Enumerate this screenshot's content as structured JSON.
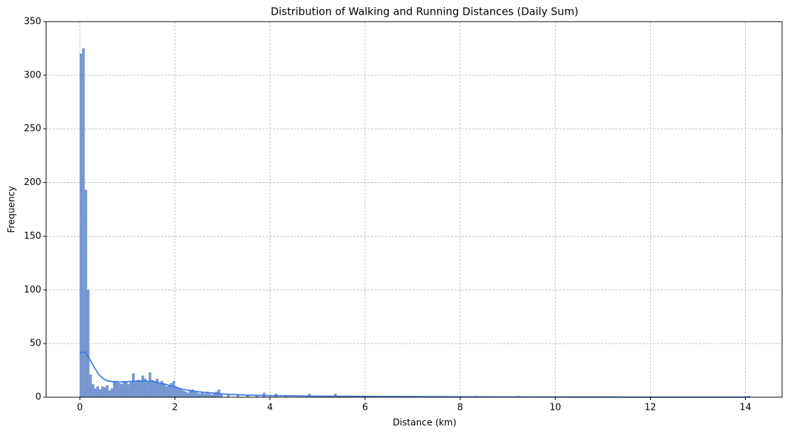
{
  "chart_data": {
    "type": "histogram",
    "title": "Distribution of Walking and Running Distances (Daily Sum)",
    "xlabel": "Distance (km)",
    "ylabel": "Frequency",
    "color": "#7b9bd4",
    "edgecolor": "#5b7fc0",
    "bins": [
      0,
      0.05,
      0.1,
      0.15,
      0.2,
      0.25,
      0.3,
      0.35,
      0.4,
      0.45,
      0.5,
      0.55,
      0.6,
      0.65,
      0.7,
      0.75,
      0.8,
      0.85,
      0.9,
      0.95,
      1,
      1.05,
      1.1,
      1.15,
      1.2,
      1.25,
      1.3,
      1.35,
      1.4,
      1.45,
      1.5,
      1.55,
      1.6,
      1.65,
      1.7,
      1.75,
      1.8,
      1.85,
      1.9,
      1.95,
      2,
      2.05,
      2.1,
      2.15,
      2.2,
      2.25,
      2.3,
      2.35,
      2.4,
      2.45,
      2.5,
      2.55,
      2.6,
      2.65,
      2.7,
      2.75,
      2.8,
      2.85,
      2.9,
      2.95,
      3,
      3.1,
      3.15,
      3.3,
      3.35,
      3.5,
      3.55,
      3.7,
      3.75,
      3.85,
      3.9,
      4.1,
      4.15,
      4.3,
      4.35,
      4.8,
      4.85,
      5.35,
      5.4,
      6,
      6.05,
      6.9,
      6.95,
      8.3,
      8.35,
      9.2,
      9.25,
      14.05,
      14.1
    ],
    "values": [
      320,
      325,
      193,
      100,
      21,
      12,
      8,
      10,
      7,
      10,
      9,
      11,
      6,
      8,
      15,
      15,
      13,
      12,
      15,
      14,
      12,
      14,
      22,
      14,
      16,
      15,
      20,
      17,
      14,
      23,
      16,
      15,
      17,
      13,
      15,
      12,
      10,
      11,
      13,
      15,
      10,
      8,
      7,
      6,
      5,
      4,
      6,
      7,
      5,
      4,
      3,
      4,
      3,
      5,
      3,
      2,
      3,
      5,
      7,
      3,
      0,
      2,
      0,
      2,
      0,
      2,
      0,
      2,
      0,
      4,
      0,
      3,
      0,
      1,
      0,
      3,
      0,
      3,
      0,
      1,
      0,
      1,
      0,
      1,
      0,
      1,
      0,
      1
    ],
    "kde": {
      "color": "#3b78e7",
      "x": [
        0,
        0.05,
        0.1,
        0.15,
        0.2,
        0.3,
        0.4,
        0.5,
        0.6,
        0.8,
        1,
        1.2,
        1.4,
        1.6,
        1.8,
        2,
        2.2,
        2.5,
        3,
        3.5,
        4,
        5,
        6,
        8,
        10,
        12,
        14.1
      ],
      "values": [
        41,
        42,
        42,
        40,
        36,
        28,
        21,
        17,
        15,
        14,
        14.5,
        15,
        15,
        14,
        12,
        9.5,
        7,
        5,
        3,
        2,
        1.5,
        1,
        0.7,
        0.4,
        0.2,
        0.1,
        0.1
      ]
    },
    "xlim": [
      -0.71,
      14.77
    ],
    "ylim": [
      0,
      350
    ],
    "xticks": [
      0,
      2,
      4,
      6,
      8,
      10,
      12,
      14
    ],
    "yticks": [
      0,
      50,
      100,
      150,
      200,
      250,
      300,
      350
    ],
    "grid": true
  }
}
